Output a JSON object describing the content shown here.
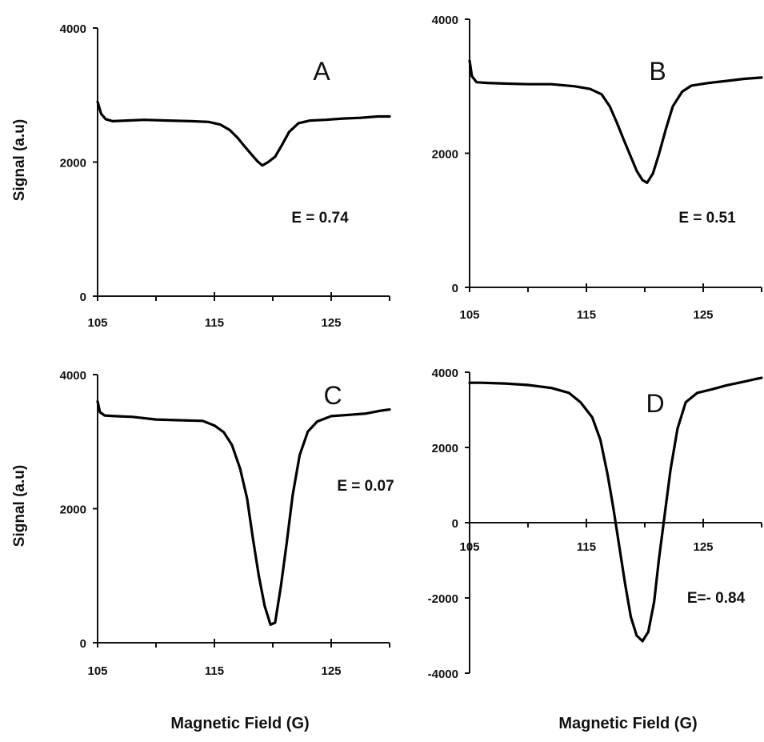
{
  "figure": {
    "ylabel": "Signal (a.u)",
    "xlabel": "Magnetic Field (G)"
  },
  "chart_data": [
    {
      "type": "line",
      "panel": "A",
      "annotation": "E = 0.74",
      "xlim": [
        105,
        130
      ],
      "ylim": [
        0,
        4000
      ],
      "xticks": [
        "105",
        "115",
        "125"
      ],
      "yticks": [
        "0",
        "2000",
        "4000"
      ],
      "series": [
        {
          "x": [
            105,
            105.3,
            105.7,
            106.3,
            107.5,
            109,
            111,
            113,
            114.5,
            115.5,
            116.3,
            117,
            117.6,
            118.2,
            118.7,
            119.1,
            119.6,
            120.2,
            120.8,
            121.4,
            122.2,
            123.2,
            124.5,
            126,
            127.5,
            129,
            130
          ],
          "y": [
            2900,
            2720,
            2640,
            2610,
            2620,
            2630,
            2620,
            2610,
            2600,
            2560,
            2480,
            2360,
            2230,
            2110,
            2010,
            1950,
            2000,
            2080,
            2260,
            2450,
            2580,
            2620,
            2630,
            2650,
            2660,
            2680,
            2680
          ]
        }
      ]
    },
    {
      "type": "line",
      "panel": "B",
      "annotation": "E = 0.51",
      "xlim": [
        105,
        130
      ],
      "ylim": [
        0,
        4000
      ],
      "xticks": [
        "105",
        "115",
        "125"
      ],
      "yticks": [
        "0",
        "2000",
        "4000"
      ],
      "series": [
        {
          "x": [
            105,
            105.2,
            105.6,
            106.5,
            108,
            110,
            112,
            114,
            115.3,
            116.3,
            117,
            117.6,
            118.2,
            118.8,
            119.3,
            119.8,
            120.2,
            120.7,
            121.2,
            121.8,
            122.4,
            123.2,
            124,
            125.5,
            127,
            128.5,
            130
          ],
          "y": [
            3380,
            3150,
            3060,
            3050,
            3040,
            3030,
            3030,
            3000,
            2960,
            2880,
            2700,
            2460,
            2200,
            1950,
            1740,
            1600,
            1560,
            1700,
            1980,
            2360,
            2700,
            2920,
            3010,
            3050,
            3080,
            3110,
            3130
          ]
        }
      ]
    },
    {
      "type": "line",
      "panel": "C",
      "annotation": "E = 0.07",
      "xlim": [
        105,
        130
      ],
      "ylim": [
        0,
        4000
      ],
      "xticks": [
        "105",
        "115",
        "125"
      ],
      "yticks": [
        "0",
        "2000",
        "4000"
      ],
      "series": [
        {
          "x": [
            105,
            105.2,
            105.6,
            106.5,
            108,
            110,
            112,
            114,
            115,
            115.8,
            116.5,
            117.2,
            117.8,
            118.3,
            118.8,
            119.3,
            119.8,
            120.2,
            120.7,
            121.2,
            121.7,
            122.3,
            123,
            123.8,
            125,
            126.5,
            128,
            129.2,
            130
          ],
          "y": [
            3600,
            3440,
            3390,
            3380,
            3370,
            3330,
            3320,
            3310,
            3240,
            3140,
            2950,
            2600,
            2150,
            1550,
            1000,
            550,
            270,
            300,
            850,
            1500,
            2200,
            2800,
            3150,
            3300,
            3380,
            3400,
            3420,
            3460,
            3480
          ]
        }
      ]
    },
    {
      "type": "line",
      "panel": "D",
      "annotation": "E=- 0.84",
      "xlim": [
        105,
        130
      ],
      "ylim": [
        -4000,
        4000
      ],
      "xticks": [
        "105",
        "115",
        "125"
      ],
      "yticks": [
        "-4000",
        "-2000",
        "0",
        "2000",
        "4000"
      ],
      "series": [
        {
          "x": [
            105,
            106,
            108,
            110,
            112,
            113.5,
            114.5,
            115.5,
            116.2,
            116.8,
            117.3,
            117.8,
            118.3,
            118.8,
            119.3,
            119.8,
            120.3,
            120.8,
            121.2,
            121.7,
            122.2,
            122.8,
            123.5,
            124.5,
            125.8,
            127,
            128.5,
            129.5,
            130
          ],
          "y": [
            3720,
            3720,
            3700,
            3660,
            3580,
            3450,
            3200,
            2800,
            2200,
            1300,
            400,
            -600,
            -1600,
            -2500,
            -3000,
            -3150,
            -2900,
            -2100,
            -1000,
            200,
            1400,
            2500,
            3200,
            3450,
            3550,
            3650,
            3750,
            3820,
            3850
          ]
        }
      ]
    }
  ]
}
